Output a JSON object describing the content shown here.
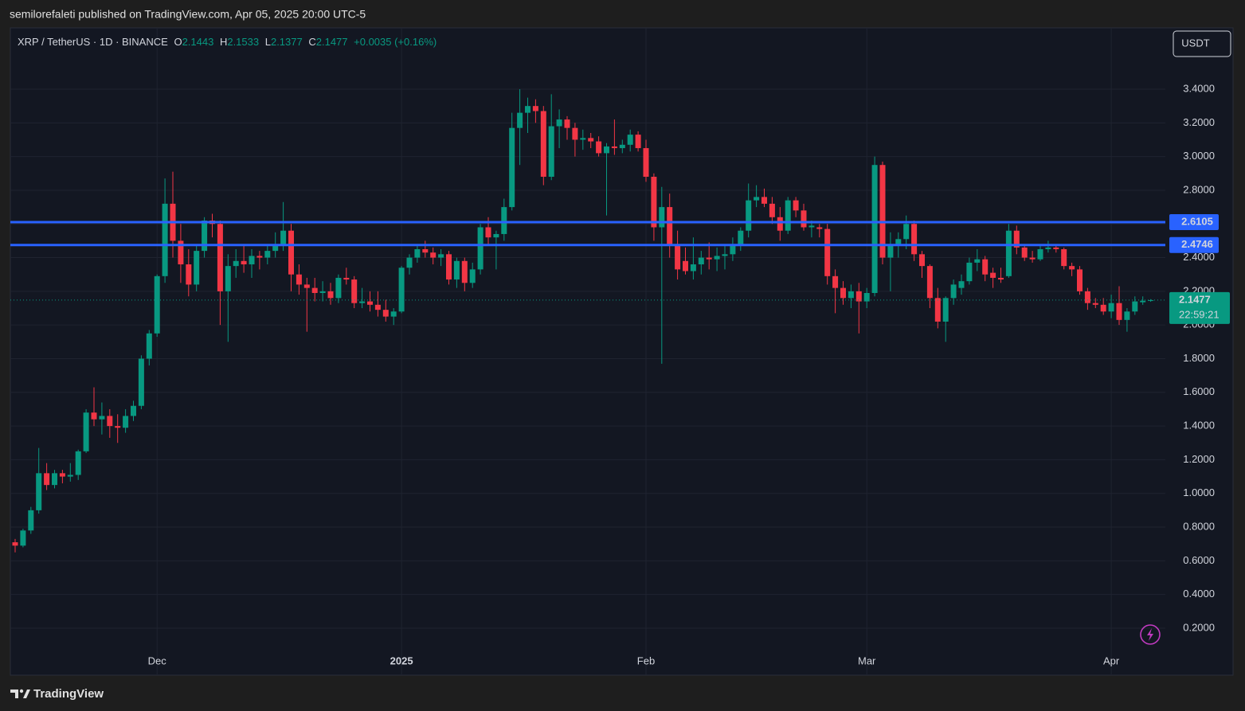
{
  "header": {
    "publisher_line": "semilorefaleti published on TradingView.com, Apr 05, 2025 20:00 UTC-5"
  },
  "footer": {
    "brand": "TradingView"
  },
  "chart_data": {
    "type": "candlestick",
    "symbol": "XRP / TetherUS · 1D · BINANCE",
    "ohlc_labels": [
      "O",
      "H",
      "L",
      "C"
    ],
    "change": "+0.0035 (+0.16%)",
    "currency": "USDT",
    "countdown": "22:59:21",
    "up_color": "#089981",
    "down_color": "#f23645",
    "grid": true,
    "categories": [
      null,
      null,
      null,
      null,
      null,
      null,
      null,
      null,
      null,
      null,
      null,
      null,
      null,
      null,
      null,
      null,
      null,
      null,
      "Dec",
      null,
      null,
      null,
      null,
      null,
      null,
      null,
      null,
      null,
      null,
      null,
      null,
      null,
      null,
      null,
      null,
      null,
      null,
      null,
      null,
      null,
      null,
      null,
      null,
      null,
      null,
      null,
      null,
      null,
      null,
      "2025",
      null,
      null,
      null,
      null,
      null,
      null,
      null,
      null,
      null,
      null,
      null,
      null,
      null,
      null,
      null,
      null,
      null,
      null,
      null,
      null,
      null,
      null,
      null,
      null,
      null,
      null,
      null,
      null,
      null,
      null,
      "Feb",
      null,
      null,
      null,
      null,
      null,
      null,
      null,
      null,
      null,
      null,
      null,
      null,
      null,
      null,
      null,
      null,
      null,
      null,
      null,
      null,
      null,
      null,
      null,
      null,
      null,
      null,
      null,
      "Mar",
      null,
      null,
      null,
      null,
      null,
      null,
      null,
      null,
      null,
      null,
      null,
      null,
      null,
      null,
      null,
      null,
      null,
      null,
      null,
      null,
      null,
      null,
      null,
      null,
      null,
      null,
      null,
      null,
      null,
      null,
      "Apr",
      null,
      null,
      null,
      null,
      null
    ],
    "open": [
      0.71,
      0.69,
      0.78,
      0.9,
      1.12,
      1.05,
      1.12,
      1.1,
      1.11,
      1.25,
      1.48,
      1.44,
      1.46,
      1.4,
      1.39,
      1.46,
      1.52,
      1.8,
      1.95,
      2.29,
      2.72,
      2.5,
      2.36,
      2.24,
      2.44,
      2.62,
      2.6,
      2.2,
      2.35,
      2.38,
      2.36,
      2.41,
      2.4,
      2.44,
      2.47,
      2.56,
      2.3,
      2.24,
      2.22,
      2.19,
      2.2,
      2.16,
      2.28,
      2.27,
      2.13,
      2.14,
      2.12,
      2.09,
      2.05,
      2.08,
      2.34,
      2.4,
      2.45,
      2.43,
      2.4,
      2.42,
      2.27,
      2.38,
      2.25,
      2.33,
      2.58,
      2.52,
      2.54,
      2.7,
      3.17,
      3.26,
      3.3,
      3.27,
      2.88,
      3.18,
      3.22,
      3.17,
      3.1,
      3.11,
      3.09,
      3.02,
      3.06,
      3.05,
      3.07,
      3.13,
      3.05,
      2.88,
      2.58,
      2.7,
      2.48,
      2.38,
      2.32,
      2.36,
      2.4,
      2.39,
      2.41,
      2.42,
      2.48,
      2.56,
      2.74,
      2.76,
      2.72,
      2.64,
      2.56,
      2.74,
      2.68,
      2.58,
      2.58,
      2.57,
      2.29,
      2.22,
      2.16,
      2.2,
      2.14,
      2.19,
      2.95,
      2.4,
      2.47,
      2.51,
      2.6,
      2.42,
      2.35,
      2.16,
      2.02,
      2.16,
      2.22,
      2.26,
      2.37,
      2.39,
      2.31,
      2.28,
      2.29,
      2.56,
      2.46,
      2.4,
      2.39,
      2.45,
      2.46,
      2.45,
      2.35,
      2.33,
      2.2,
      2.13,
      2.12,
      2.08,
      2.13,
      2.03,
      2.08,
      2.135,
      2.1443
    ],
    "high": [
      0.73,
      0.79,
      0.92,
      1.27,
      1.18,
      1.14,
      1.14,
      1.18,
      1.26,
      1.5,
      1.63,
      1.54,
      1.5,
      1.47,
      1.5,
      1.55,
      1.82,
      1.97,
      2.3,
      2.87,
      2.91,
      2.6,
      2.45,
      2.48,
      2.64,
      2.66,
      2.62,
      2.42,
      2.45,
      2.47,
      2.45,
      2.44,
      2.47,
      2.55,
      2.73,
      2.6,
      2.36,
      2.28,
      2.28,
      2.26,
      2.25,
      2.3,
      2.34,
      2.29,
      2.22,
      2.2,
      2.2,
      2.15,
      2.1,
      2.35,
      2.42,
      2.48,
      2.5,
      2.46,
      2.45,
      2.44,
      2.4,
      2.4,
      2.37,
      2.6,
      2.64,
      2.56,
      2.75,
      3.26,
      3.4,
      3.35,
      3.34,
      3.3,
      3.37,
      3.28,
      3.24,
      3.2,
      3.16,
      3.14,
      3.12,
      3.08,
      3.22,
      3.1,
      3.16,
      3.15,
      3.1,
      2.9,
      2.82,
      2.78,
      2.56,
      2.46,
      2.52,
      2.44,
      2.49,
      2.46,
      2.48,
      2.52,
      2.58,
      2.84,
      2.83,
      2.81,
      2.76,
      2.7,
      2.76,
      2.76,
      2.72,
      2.62,
      2.6,
      2.6,
      2.33,
      2.26,
      2.24,
      2.25,
      2.22,
      3.0,
      2.97,
      2.55,
      2.55,
      2.65,
      2.62,
      2.44,
      2.36,
      2.22,
      2.17,
      2.27,
      2.3,
      2.4,
      2.45,
      2.41,
      2.34,
      2.34,
      2.6,
      2.59,
      2.48,
      2.44,
      2.48,
      2.5,
      2.47,
      2.46,
      2.37,
      2.35,
      2.22,
      2.16,
      2.16,
      2.18,
      2.23,
      2.1,
      2.17,
      2.17,
      2.1533
    ],
    "low": [
      0.65,
      0.68,
      0.76,
      0.88,
      1.02,
      1.03,
      1.06,
      1.07,
      1.08,
      1.24,
      1.4,
      1.35,
      1.33,
      1.3,
      1.36,
      1.43,
      1.5,
      1.76,
      1.93,
      2.25,
      2.4,
      2.25,
      2.17,
      2.2,
      2.4,
      2.52,
      2.0,
      1.9,
      2.28,
      2.31,
      2.28,
      2.33,
      2.36,
      2.4,
      2.44,
      2.2,
      2.18,
      1.96,
      2.14,
      2.14,
      2.12,
      2.13,
      2.24,
      2.1,
      2.1,
      2.08,
      2.05,
      2.02,
      2.0,
      2.07,
      2.3,
      2.37,
      2.4,
      2.36,
      2.35,
      2.24,
      2.22,
      2.2,
      2.22,
      2.3,
      2.48,
      2.33,
      2.5,
      2.68,
      2.95,
      3.14,
      3.2,
      2.83,
      2.86,
      3.05,
      3.1,
      3.0,
      3.04,
      3.05,
      3.0,
      2.65,
      3.01,
      3.02,
      3.03,
      3.03,
      2.85,
      2.5,
      1.77,
      2.4,
      2.27,
      2.3,
      2.27,
      2.3,
      2.33,
      2.32,
      2.33,
      2.38,
      2.44,
      2.52,
      2.7,
      2.7,
      2.6,
      2.5,
      2.54,
      2.64,
      2.56,
      2.52,
      2.52,
      2.24,
      2.07,
      2.12,
      2.1,
      1.95,
      2.1,
      2.17,
      2.36,
      2.2,
      2.4,
      2.45,
      2.38,
      2.28,
      2.1,
      1.98,
      1.9,
      2.12,
      2.18,
      2.24,
      2.32,
      2.26,
      2.22,
      2.25,
      2.28,
      2.42,
      2.38,
      2.37,
      2.38,
      2.43,
      2.43,
      2.33,
      2.29,
      2.18,
      2.09,
      2.1,
      2.06,
      2.04,
      2.0,
      1.96,
      2.06,
      2.12,
      2.1377
    ],
    "close": [
      0.69,
      0.78,
      0.9,
      1.12,
      1.05,
      1.12,
      1.1,
      1.11,
      1.25,
      1.48,
      1.44,
      1.46,
      1.4,
      1.39,
      1.46,
      1.52,
      1.8,
      1.95,
      2.29,
      2.72,
      2.5,
      2.36,
      2.24,
      2.44,
      2.62,
      2.6,
      2.2,
      2.35,
      2.38,
      2.36,
      2.41,
      2.4,
      2.44,
      2.47,
      2.56,
      2.3,
      2.24,
      2.22,
      2.19,
      2.2,
      2.16,
      2.28,
      2.27,
      2.13,
      2.14,
      2.12,
      2.09,
      2.05,
      2.08,
      2.34,
      2.4,
      2.45,
      2.43,
      2.4,
      2.42,
      2.27,
      2.38,
      2.25,
      2.33,
      2.58,
      2.52,
      2.54,
      2.7,
      3.17,
      3.26,
      3.3,
      3.27,
      2.88,
      3.18,
      3.22,
      3.17,
      3.1,
      3.11,
      3.09,
      3.02,
      3.06,
      3.05,
      3.07,
      3.13,
      3.05,
      2.88,
      2.58,
      2.7,
      2.48,
      2.33,
      2.32,
      2.36,
      2.4,
      2.39,
      2.41,
      2.42,
      2.48,
      2.56,
      2.74,
      2.76,
      2.72,
      2.64,
      2.56,
      2.74,
      2.68,
      2.58,
      2.59,
      2.57,
      2.29,
      2.22,
      2.16,
      2.2,
      2.14,
      2.19,
      2.95,
      2.4,
      2.47,
      2.51,
      2.6,
      2.42,
      2.35,
      2.16,
      2.02,
      2.16,
      2.24,
      2.26,
      2.37,
      2.39,
      2.3,
      2.28,
      2.27,
      2.56,
      2.46,
      2.4,
      2.39,
      2.45,
      2.46,
      2.45,
      2.35,
      2.33,
      2.2,
      2.13,
      2.12,
      2.08,
      2.13,
      2.03,
      2.08,
      2.14,
      2.144,
      2.1477
    ],
    "hlines": [
      {
        "value": 2.6105,
        "color": "#2962ff"
      },
      {
        "value": 2.4746,
        "color": "#2962ff"
      }
    ],
    "ylim": [
      -0.079,
      3.764
    ],
    "yticks": [
      {
        "value": 0.2,
        "label": "0.2000"
      },
      {
        "value": 0.4,
        "label": "0.4000"
      },
      {
        "value": 0.6,
        "label": "0.6000"
      },
      {
        "value": 0.8,
        "label": "0.8000"
      },
      {
        "value": 1.0,
        "label": "1.0000"
      },
      {
        "value": 1.2,
        "label": "1.2000"
      },
      {
        "value": 1.4,
        "label": "1.4000"
      },
      {
        "value": 1.6,
        "label": "1.6000"
      },
      {
        "value": 1.8,
        "label": "1.8000"
      },
      {
        "value": 2.0,
        "label": "2.0000"
      },
      {
        "value": 2.2,
        "label": "2.2000"
      },
      {
        "value": 2.4,
        "label": "2.4000"
      },
      {
        "value": 2.6,
        "label": "2.6000"
      },
      {
        "value": 2.8,
        "label": "2.8000"
      },
      {
        "value": 3.0,
        "label": "3.0000"
      },
      {
        "value": 3.2,
        "label": "3.2000"
      },
      {
        "value": 3.4,
        "label": "3.4000"
      }
    ]
  }
}
